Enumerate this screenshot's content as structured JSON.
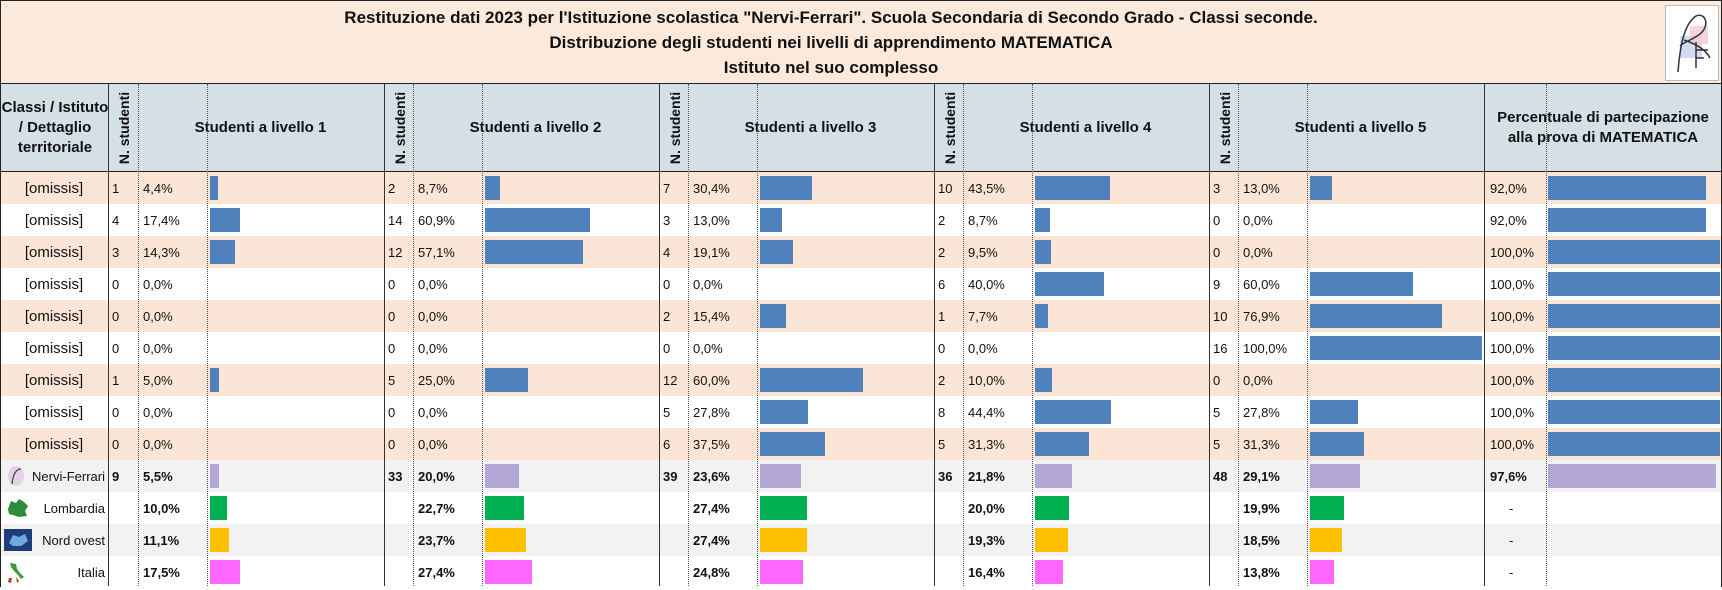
{
  "header": {
    "line1": "Restituzione dati 2023 per l'Istituzione scolastica \"Nervi-Ferrari\". Scuola Secondaria di Secondo Grado - Classi seconde.",
    "line2": "Distribuzione degli studenti nei livelli di apprendimento MATEMATICA",
    "line3": "Istituto nel suo complesso"
  },
  "columns": {
    "class_header": "Classi / Istituto / Dettaglio territoriale",
    "n_students": "N. studenti",
    "level_headers": [
      "Studenti a livello 1",
      "Studenti a livello 2",
      "Studenti a livello 3",
      "Studenti a livello 4",
      "Studenti a livello 5"
    ],
    "participation_header": "Percentuale di partecipazione alla prova di MATEMATICA"
  },
  "colors": {
    "class_bar": "#4f81bd",
    "school_bar": "#b4a7d6",
    "lombardia_bar": "#00b050",
    "nordovest_bar": "#ffc000",
    "italia_bar": "#ff66ff",
    "row_peach": "#fbe5d6",
    "row_gray": "#f2f2f2",
    "header_blue": "#d4dfe6"
  },
  "chart_data": {
    "type": "table",
    "bar_scale_max_pct": 100,
    "rows": [
      {
        "label": "[omissis]",
        "kind": "class",
        "levels": [
          {
            "n": "1",
            "pct": "4,4%",
            "v": 4.4
          },
          {
            "n": "2",
            "pct": "8,7%",
            "v": 8.7
          },
          {
            "n": "7",
            "pct": "30,4%",
            "v": 30.4
          },
          {
            "n": "10",
            "pct": "43,5%",
            "v": 43.5
          },
          {
            "n": "3",
            "pct": "13,0%",
            "v": 13.0
          }
        ],
        "participation": {
          "pct": "92,0%",
          "v": 92.0
        }
      },
      {
        "label": "[omissis]",
        "kind": "class",
        "levels": [
          {
            "n": "4",
            "pct": "17,4%",
            "v": 17.4
          },
          {
            "n": "14",
            "pct": "60,9%",
            "v": 60.9
          },
          {
            "n": "3",
            "pct": "13,0%",
            "v": 13.0
          },
          {
            "n": "2",
            "pct": "8,7%",
            "v": 8.7
          },
          {
            "n": "0",
            "pct": "0,0%",
            "v": 0
          }
        ],
        "participation": {
          "pct": "92,0%",
          "v": 92.0
        }
      },
      {
        "label": "[omissis]",
        "kind": "class",
        "levels": [
          {
            "n": "3",
            "pct": "14,3%",
            "v": 14.3
          },
          {
            "n": "12",
            "pct": "57,1%",
            "v": 57.1
          },
          {
            "n": "4",
            "pct": "19,1%",
            "v": 19.1
          },
          {
            "n": "2",
            "pct": "9,5%",
            "v": 9.5
          },
          {
            "n": "0",
            "pct": "0,0%",
            "v": 0
          }
        ],
        "participation": {
          "pct": "100,0%",
          "v": 100.0
        }
      },
      {
        "label": "[omissis]",
        "kind": "class",
        "levels": [
          {
            "n": "0",
            "pct": "0,0%",
            "v": 0
          },
          {
            "n": "0",
            "pct": "0,0%",
            "v": 0
          },
          {
            "n": "0",
            "pct": "0,0%",
            "v": 0
          },
          {
            "n": "6",
            "pct": "40,0%",
            "v": 40.0
          },
          {
            "n": "9",
            "pct": "60,0%",
            "v": 60.0
          }
        ],
        "participation": {
          "pct": "100,0%",
          "v": 100.0
        }
      },
      {
        "label": "[omissis]",
        "kind": "class",
        "levels": [
          {
            "n": "0",
            "pct": "0,0%",
            "v": 0
          },
          {
            "n": "0",
            "pct": "0,0%",
            "v": 0
          },
          {
            "n": "2",
            "pct": "15,4%",
            "v": 15.4
          },
          {
            "n": "1",
            "pct": "7,7%",
            "v": 7.7
          },
          {
            "n": "10",
            "pct": "76,9%",
            "v": 76.9
          }
        ],
        "participation": {
          "pct": "100,0%",
          "v": 100.0
        }
      },
      {
        "label": "[omissis]",
        "kind": "class",
        "levels": [
          {
            "n": "0",
            "pct": "0,0%",
            "v": 0
          },
          {
            "n": "0",
            "pct": "0,0%",
            "v": 0
          },
          {
            "n": "0",
            "pct": "0,0%",
            "v": 0
          },
          {
            "n": "0",
            "pct": "0,0%",
            "v": 0
          },
          {
            "n": "16",
            "pct": "100,0%",
            "v": 100.0
          }
        ],
        "participation": {
          "pct": "100,0%",
          "v": 100.0
        }
      },
      {
        "label": "[omissis]",
        "kind": "class",
        "levels": [
          {
            "n": "1",
            "pct": "5,0%",
            "v": 5.0
          },
          {
            "n": "5",
            "pct": "25,0%",
            "v": 25.0
          },
          {
            "n": "12",
            "pct": "60,0%",
            "v": 60.0
          },
          {
            "n": "2",
            "pct": "10,0%",
            "v": 10.0
          },
          {
            "n": "0",
            "pct": "0,0%",
            "v": 0
          }
        ],
        "participation": {
          "pct": "100,0%",
          "v": 100.0
        }
      },
      {
        "label": "[omissis]",
        "kind": "class",
        "levels": [
          {
            "n": "0",
            "pct": "0,0%",
            "v": 0
          },
          {
            "n": "0",
            "pct": "0,0%",
            "v": 0
          },
          {
            "n": "5",
            "pct": "27,8%",
            "v": 27.8
          },
          {
            "n": "8",
            "pct": "44,4%",
            "v": 44.4
          },
          {
            "n": "5",
            "pct": "27,8%",
            "v": 27.8
          }
        ],
        "participation": {
          "pct": "100,0%",
          "v": 100.0
        }
      },
      {
        "label": "[omissis]",
        "kind": "class",
        "levels": [
          {
            "n": "0",
            "pct": "0,0%",
            "v": 0
          },
          {
            "n": "0",
            "pct": "0,0%",
            "v": 0
          },
          {
            "n": "6",
            "pct": "37,5%",
            "v": 37.5
          },
          {
            "n": "5",
            "pct": "31,3%",
            "v": 31.3
          },
          {
            "n": "5",
            "pct": "31,3%",
            "v": 31.3
          }
        ],
        "participation": {
          "pct": "100,0%",
          "v": 100.0
        }
      },
      {
        "label": "Nervi-Ferrari",
        "kind": "school",
        "icon": "school-logo-icon",
        "levels": [
          {
            "n": "9",
            "pct": "5,5%",
            "v": 5.5
          },
          {
            "n": "33",
            "pct": "20,0%",
            "v": 20.0
          },
          {
            "n": "39",
            "pct": "23,6%",
            "v": 23.6
          },
          {
            "n": "36",
            "pct": "21,8%",
            "v": 21.8
          },
          {
            "n": "48",
            "pct": "29,1%",
            "v": 29.1
          }
        ],
        "participation": {
          "pct": "97,6%",
          "v": 97.6
        }
      },
      {
        "label": "Lombardia",
        "kind": "lombardia",
        "icon": "lombardia-map-icon",
        "levels": [
          {
            "n": "",
            "pct": "10,0%",
            "v": 10.0
          },
          {
            "n": "",
            "pct": "22,7%",
            "v": 22.7
          },
          {
            "n": "",
            "pct": "27,4%",
            "v": 27.4
          },
          {
            "n": "",
            "pct": "20,0%",
            "v": 20.0
          },
          {
            "n": "",
            "pct": "19,9%",
            "v": 19.9
          }
        ],
        "participation": {
          "pct": "-",
          "v": null
        }
      },
      {
        "label": "Nord ovest",
        "kind": "nordovest",
        "icon": "nord-ovest-map-icon",
        "levels": [
          {
            "n": "",
            "pct": "11,1%",
            "v": 11.1
          },
          {
            "n": "",
            "pct": "23,7%",
            "v": 23.7
          },
          {
            "n": "",
            "pct": "27,4%",
            "v": 27.4
          },
          {
            "n": "",
            "pct": "19,3%",
            "v": 19.3
          },
          {
            "n": "",
            "pct": "18,5%",
            "v": 18.5
          }
        ],
        "participation": {
          "pct": "-",
          "v": null
        }
      },
      {
        "label": "Italia",
        "kind": "italia",
        "icon": "italia-map-icon",
        "levels": [
          {
            "n": "",
            "pct": "17,5%",
            "v": 17.5
          },
          {
            "n": "",
            "pct": "27,4%",
            "v": 27.4
          },
          {
            "n": "",
            "pct": "24,8%",
            "v": 24.8
          },
          {
            "n": "",
            "pct": "16,4%",
            "v": 16.4
          },
          {
            "n": "",
            "pct": "13,8%",
            "v": 13.8
          }
        ],
        "participation": {
          "pct": "-",
          "v": null
        }
      }
    ]
  }
}
